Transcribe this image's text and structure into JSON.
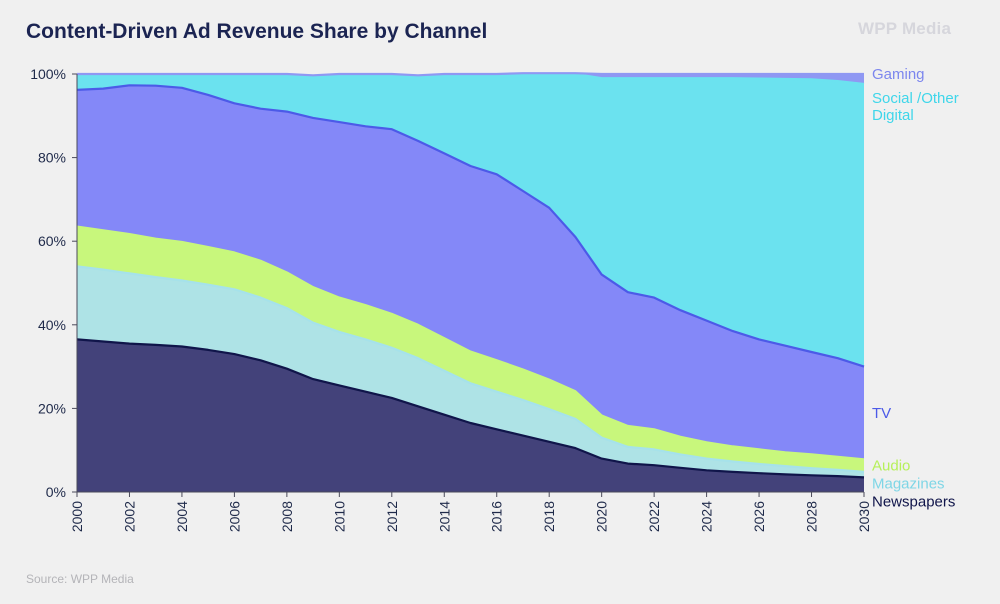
{
  "header": {
    "title": "Content-Driven Ad Revenue Share by Channel",
    "brand": "WPP Media"
  },
  "footer": {
    "source": "Source: WPP Media"
  },
  "chart_data": {
    "type": "area",
    "stacked": true,
    "title": "Content-Driven Ad Revenue Share by Channel",
    "xlabel": "",
    "ylabel": "",
    "xlim": [
      2000,
      2030
    ],
    "ylim": [
      0,
      100
    ],
    "x_ticks": [
      "2000",
      "2002",
      "2004",
      "2006",
      "2008",
      "2010",
      "2012",
      "2014",
      "2016",
      "2018",
      "2020",
      "2022",
      "2024",
      "2026",
      "2028",
      "2030"
    ],
    "y_ticks": [
      "0%",
      "20%",
      "40%",
      "60%",
      "80%",
      "100%"
    ],
    "x": [
      2000,
      2001,
      2002,
      2003,
      2004,
      2005,
      2006,
      2007,
      2008,
      2009,
      2010,
      2011,
      2012,
      2013,
      2014,
      2015,
      2016,
      2017,
      2018,
      2019,
      2020,
      2021,
      2022,
      2023,
      2024,
      2025,
      2026,
      2027,
      2028,
      2029,
      2030
    ],
    "series": [
      {
        "name": "Newspapers",
        "label_lines": [
          "Newspapers"
        ],
        "color": "#43427a",
        "line": "#10154a",
        "values": [
          36.5,
          36,
          35.5,
          35.2,
          34.8,
          34,
          33,
          31.5,
          29.5,
          27,
          25.5,
          24,
          22.5,
          20.5,
          18.5,
          16.5,
          15,
          13.5,
          12,
          10.5,
          8,
          6.8,
          6.4,
          5.8,
          5.2,
          4.8,
          4.5,
          4.2,
          4,
          3.8,
          3.5
        ]
      },
      {
        "name": "Magazines",
        "label_lines": [
          "Magazines"
        ],
        "color": "#aee3e6",
        "line": "#a6e2ea",
        "values": [
          17.5,
          17.2,
          16.8,
          16.2,
          15.8,
          15.6,
          15.5,
          15,
          14.5,
          13.5,
          12.8,
          12.5,
          12,
          11.5,
          10.5,
          9.5,
          9,
          8.5,
          7.8,
          7,
          5,
          4,
          3.8,
          3.2,
          2.8,
          2.5,
          2.2,
          2,
          1.7,
          1.5,
          1.3
        ]
      },
      {
        "name": "Audio",
        "label_lines": [
          "Audio"
        ],
        "color": "#c8f77c",
        "line": "#c8f77c",
        "values": [
          9.5,
          9.4,
          9.4,
          9.2,
          9.2,
          9,
          8.8,
          8.8,
          8.5,
          8.5,
          8.2,
          8.2,
          8.1,
          8,
          7.8,
          7.6,
          7.5,
          7.3,
          7.1,
          6.6,
          5.3,
          5,
          4.8,
          4.2,
          3.9,
          3.6,
          3.5,
          3.3,
          3.3,
          3.1,
          3
        ]
      },
      {
        "name": "TV",
        "label_lines": [
          "TV"
        ],
        "color": "#8488f8",
        "line": "#4c5ae8",
        "values": [
          32.7,
          33.9,
          35.6,
          36.6,
          36.9,
          36.4,
          35.7,
          36.4,
          38.5,
          40.5,
          42,
          42.8,
          44.2,
          44,
          44.2,
          44.4,
          44.5,
          42.7,
          41.1,
          36.9,
          33.7,
          32,
          31.5,
          30.3,
          29.1,
          27.6,
          26.3,
          25.5,
          24.5,
          23.6,
          22.2
        ]
      },
      {
        "name": "Social /Other Digital",
        "label_lines": [
          "Social /Other",
          "Digital"
        ],
        "color": "#6be2ef",
        "line": "#6be2ef",
        "values": [
          3.6,
          3.3,
          2.5,
          2.6,
          3.1,
          4.8,
          6.8,
          8.1,
          8.8,
          10,
          11.3,
          12.3,
          13,
          15.5,
          18.8,
          21.8,
          23.8,
          28,
          32,
          39,
          47,
          51.2,
          52.5,
          55.5,
          58,
          60.5,
          62.4,
          63.8,
          65.2,
          66.3,
          67.6
        ]
      },
      {
        "name": "Gaming",
        "label_lines": [
          "Gaming"
        ],
        "color": "#8f98f3",
        "line": "#8f98f3",
        "values": [
          0.2,
          0.2,
          0.2,
          0.2,
          0.2,
          0.2,
          0.2,
          0.2,
          0.2,
          0.2,
          0.2,
          0.2,
          0.2,
          0.2,
          0.2,
          0.2,
          0.2,
          0.2,
          0.2,
          0.2,
          1,
          1,
          1,
          1,
          1,
          1,
          1.1,
          1.2,
          1.3,
          1.7,
          2.4
        ]
      }
    ],
    "legend": "right, at series ends"
  }
}
